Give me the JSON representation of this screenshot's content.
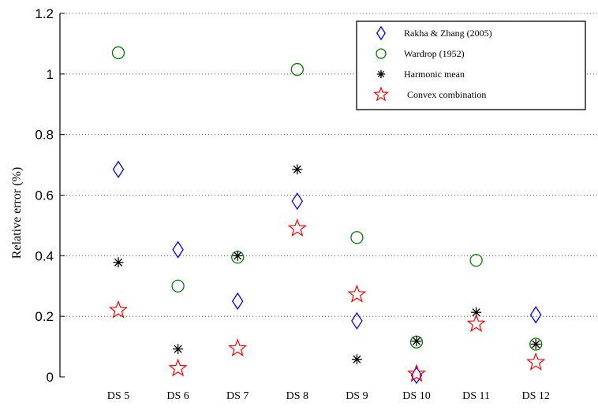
{
  "chart_data": {
    "type": "scatter",
    "title": "",
    "xlabel": "",
    "ylabel": "Relative error (%)",
    "categories": [
      "DS 5",
      "DS 6",
      "DS 7",
      "DS 8",
      "DS 9",
      "DS 10",
      "DS 11",
      "DS 12"
    ],
    "ylim": [
      0,
      1.2
    ],
    "yticks": [
      "0",
      "0.2",
      "0.4",
      "0.6",
      "0.8",
      "1",
      "1.2"
    ],
    "grid": "horizontal dotted",
    "legend_position": "top-right",
    "series": [
      {
        "name": "Rakha & Zhang (2005)",
        "marker": "diamond",
        "color": "#0000ff",
        "values": [
          0.685,
          0.42,
          0.25,
          0.58,
          0.185,
          0.005,
          null,
          0.205
        ]
      },
      {
        "name": "Wardrop (1952)",
        "marker": "circle",
        "color": "#008000",
        "values": [
          1.07,
          0.3,
          0.395,
          1.015,
          0.46,
          0.115,
          0.385,
          0.108
        ]
      },
      {
        "name": "Harmonic mean",
        "marker": "asterisk",
        "color": "#000000",
        "values": [
          0.378,
          0.092,
          0.4,
          0.685,
          0.058,
          0.118,
          0.213,
          0.108
        ]
      },
      {
        "name": "Convex combination",
        "marker": "star",
        "color": "#ff0000",
        "values": [
          0.22,
          0.028,
          0.094,
          0.49,
          0.272,
          0.01,
          0.175,
          0.048
        ]
      }
    ]
  }
}
